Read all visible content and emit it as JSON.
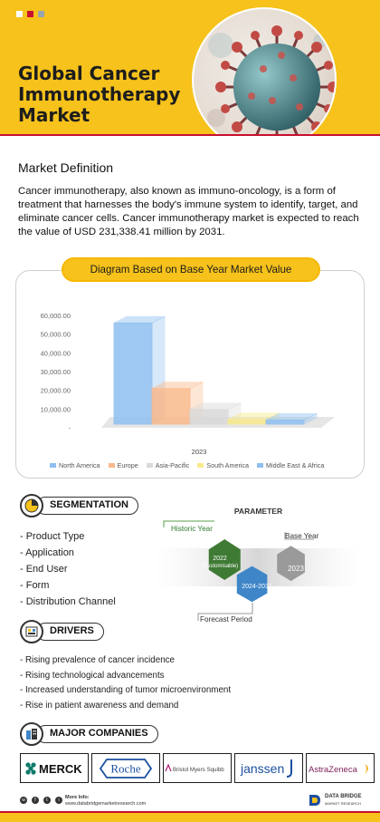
{
  "header": {
    "title": "Global Cancer Immunotherapy Market",
    "dot_colors": [
      "#ffffff",
      "#c8102e",
      "#9aa4ad"
    ]
  },
  "definition": {
    "title": "Market Definition",
    "text": "Cancer immunotherapy, also known as immuno-oncology, is a form of treatment that harnesses the body's immune system to identify, target, and eliminate cancer cells. Cancer immunotherapy market is expected to reach the value of USD 231,338.41 million by 2031."
  },
  "chart_title": "Diagram Based on Base Year Market Value",
  "chart_data": {
    "type": "bar",
    "categories": [
      "2023"
    ],
    "series": [
      {
        "name": "North America",
        "values": [
          54000
        ],
        "color": "#8fbff0"
      },
      {
        "name": "Europe",
        "values": [
          19000
        ],
        "color": "#f9b98b"
      },
      {
        "name": "Asia-Pacific",
        "values": [
          7800
        ],
        "color": "#d9d9d9"
      },
      {
        "name": "South America",
        "values": [
          2500
        ],
        "color": "#f8ea8c"
      },
      {
        "name": "Middle East & Africa",
        "values": [
          2200
        ],
        "color": "#8fbff0"
      }
    ],
    "y_ticks": [
      "60,000.00",
      "50,000.00",
      "40,000.00",
      "30,000.00",
      "20,000.00",
      "10,000.00",
      "-"
    ],
    "ylim": [
      0,
      60000
    ],
    "xlabel": "2023",
    "legend_position": "bottom",
    "grid": false
  },
  "segmentation": {
    "label": "SEGMENTATION",
    "items": [
      "Product Type",
      "Application",
      "End User",
      "Form",
      "Distribution Channel"
    ]
  },
  "parameter": {
    "title": "PARAMETER",
    "historic_label": "Historic Year",
    "historic_value": "2022",
    "historic_note": "(Customisable)",
    "forecast_value": "2024-2031",
    "base_value": "2023",
    "base_label": "Base Year",
    "forecast_label": "Forecast Period"
  },
  "drivers": {
    "label": "DRIVERS",
    "items": [
      "Rising prevalence of cancer incidence",
      "Rising technological advancements",
      "Increased understanding of tumor microenvironment",
      "Rise in patient awareness and demand"
    ]
  },
  "companies": {
    "label": "MAJOR COMPANIES",
    "logos": [
      "MERCK",
      "Roche",
      "Bristol Myers Squibb",
      "janssen",
      "AstraZeneca"
    ]
  },
  "footer": {
    "more_info_label": "More Info:",
    "more_info_url": "www.databridgemarketresearch.com",
    "brand_line1": "DATA BRIDGE",
    "brand_line2": "MARKET RESEARCH",
    "social_icons": [
      "whatsapp-icon",
      "facebook-icon",
      "twitter-icon",
      "instagram-icon"
    ]
  }
}
